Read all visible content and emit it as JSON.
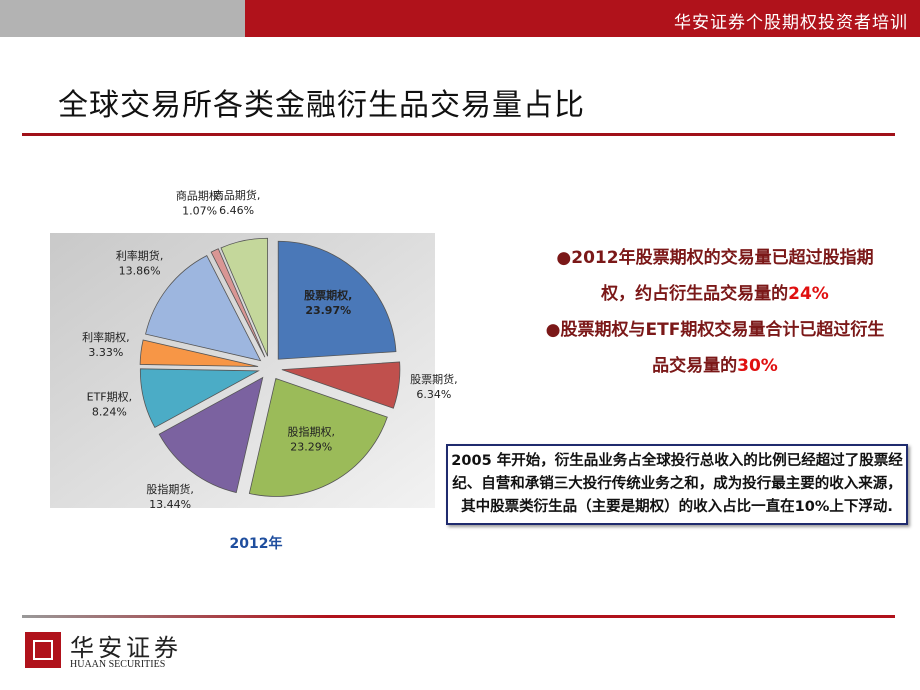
{
  "header": {
    "banner": "华安证券个股期权投资者培训"
  },
  "title": "全球交易所各类金融衍生品交易量占比",
  "chart_data": {
    "type": "pie",
    "caption": "2012年",
    "label_separator": ",",
    "categories": [
      "股票期权",
      "股票期货",
      "股指期权",
      "股指期货",
      "ETF期权",
      "利率期权",
      "利率期货",
      "商品期权",
      "商品期货"
    ],
    "values": [
      23.97,
      6.34,
      23.29,
      13.44,
      8.24,
      3.33,
      13.86,
      1.07,
      6.46
    ],
    "value_labels": [
      "23.97%",
      "6.34%",
      "23.29%",
      "13.44%",
      "8.24%",
      "3.33%",
      "13.86%",
      "1.07%",
      "6.46%"
    ],
    "colors": [
      "#4a78b8",
      "#c0504d",
      "#9bbb59",
      "#7b62a0",
      "#4bacc6",
      "#f79646",
      "#9db6df",
      "#d99694",
      "#c4d79b"
    ]
  },
  "bullets": [
    {
      "text": "2012年股票期权的交易量已超过股指期权，约占衍生品交易量的",
      "highlight": "24%"
    },
    {
      "text": "股票期权与ETF期权交易量合计已超过衍生品交易量的",
      "highlight": "30%"
    }
  ],
  "note": "2005 年开始，衍生品业务占全球投行总收入的比例已经超过了股票经纪、自营和承销三大投行传统业务之和，成为投行最主要的收入来源，其中股票类衍生品（主要是期权）的收入占比一直在10%上下浮动.",
  "logo": {
    "name": "华安证券",
    "english": "HUAAN SECURITIES"
  }
}
